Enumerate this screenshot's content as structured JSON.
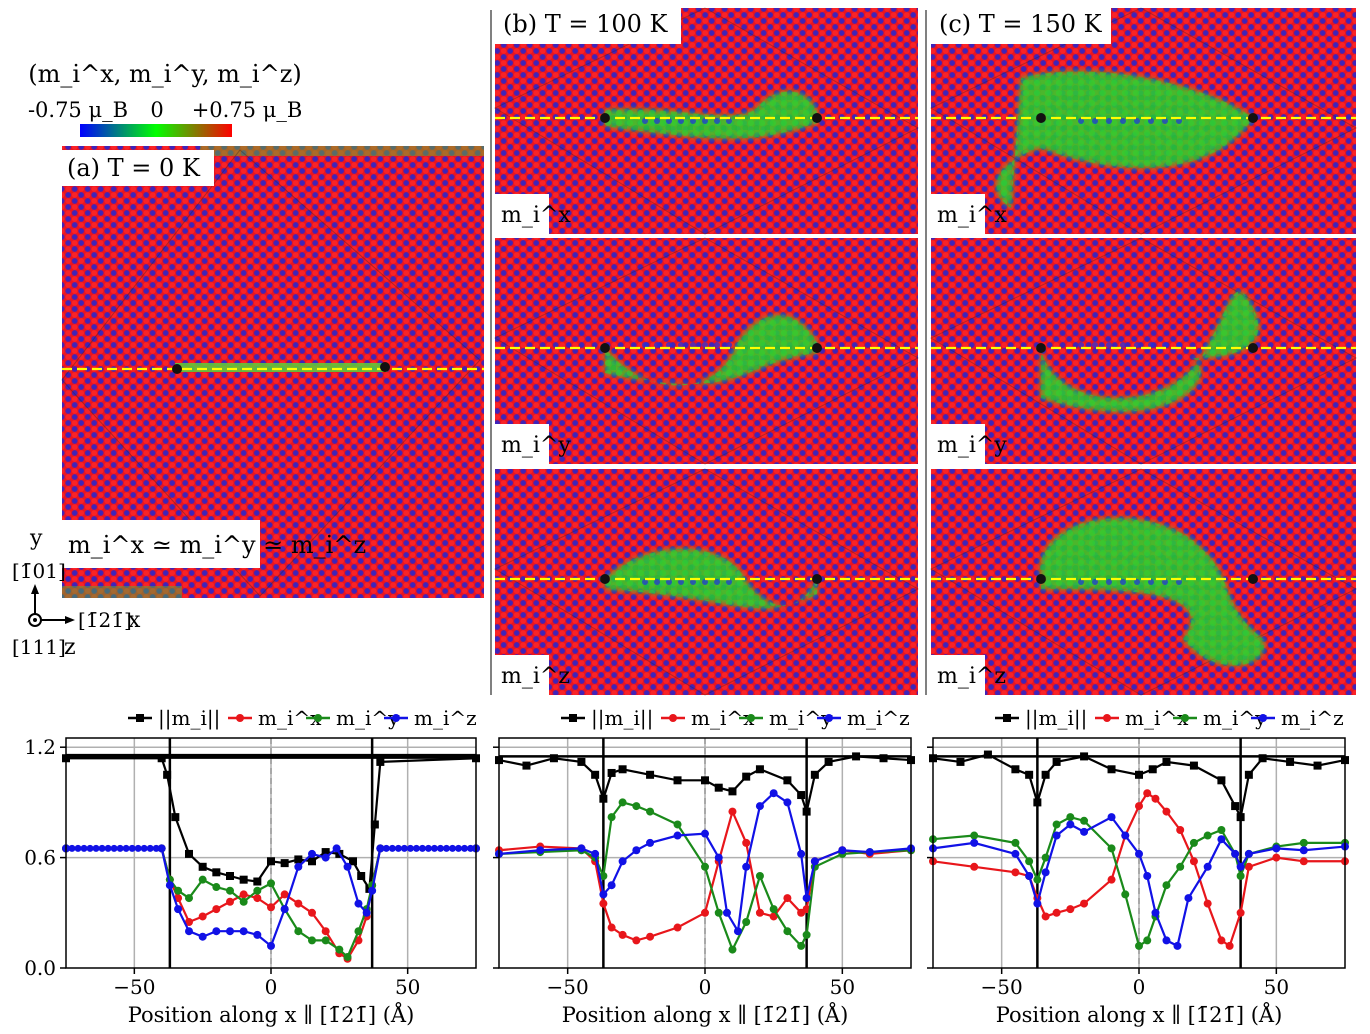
{
  "colorbar": {
    "title": "(m_i^x, m_i^y, m_i^z)",
    "min_label": "-0.75 μ_B",
    "mid_label": "0",
    "max_label": "+0.75 μ_B",
    "colors": [
      "#0000ff",
      "#00ff00",
      "#ff0000"
    ]
  },
  "maps": {
    "a_title": "(a) T = 0 K",
    "a_note": "m_i^x ≃ m_i^y ≃ m_i^z",
    "b_title": "(b) T = 100 K",
    "c_title": "(c) T = 150 K",
    "row_labels": [
      "m_i^x",
      "m_i^y",
      "m_i^z"
    ]
  },
  "axes_legend": {
    "y_name": "y",
    "y_dir": "[1̄01]",
    "x_dir": "[1̄21̄]",
    "x_name": "x",
    "z_dir": "[111]",
    "z_name": "z"
  },
  "colors": {
    "norm": "#000000",
    "mx": "#e8161b",
    "my": "#1a8a1a",
    "mz": "#1111e6",
    "dashed_line": "#ffff00",
    "map_red": "#e8141f",
    "map_blue": "#1b24d6",
    "map_green": "#2ad62a"
  },
  "chart_data": [
    {
      "type": "line",
      "panel": "T = 0 K",
      "xlabel": "Position along x ∥ [1̄21̄] (Å)",
      "xlim": [
        -75,
        75
      ],
      "ylim": [
        0,
        1.25
      ],
      "x_ticks": [
        "−50",
        "0",
        "50"
      ],
      "y_ticks": [
        "0.0",
        "0.6",
        "1.2"
      ],
      "grid": true,
      "legend_position": "top-center",
      "vertical_lines": [
        -37,
        37
      ],
      "reference_lines_y": [
        1.15,
        0.65
      ],
      "series": [
        {
          "name": "||m_i||",
          "x": [
            -75,
            -40,
            -38,
            -35,
            -30,
            -25,
            -20,
            -15,
            -10,
            -5,
            0,
            5,
            10,
            15,
            20,
            25,
            30,
            33,
            36,
            38,
            40,
            75
          ],
          "values": [
            1.14,
            1.14,
            1.05,
            0.82,
            0.62,
            0.55,
            0.52,
            0.5,
            0.48,
            0.47,
            0.58,
            0.57,
            0.59,
            0.58,
            0.63,
            0.62,
            0.58,
            0.5,
            0.43,
            0.78,
            1.12,
            1.14
          ]
        },
        {
          "name": "m_i^x",
          "x": [
            -75,
            -40,
            -37,
            -34,
            -30,
            -25,
            -20,
            -15,
            -10,
            -5,
            0,
            5,
            10,
            15,
            20,
            25,
            28,
            32,
            35,
            37,
            40,
            75
          ],
          "values": [
            0.65,
            0.65,
            0.48,
            0.38,
            0.25,
            0.28,
            0.32,
            0.36,
            0.4,
            0.38,
            0.33,
            0.4,
            0.35,
            0.3,
            0.2,
            0.08,
            0.05,
            0.15,
            0.28,
            0.45,
            0.65,
            0.65
          ]
        },
        {
          "name": "m_i^y",
          "x": [
            -75,
            -40,
            -37,
            -34,
            -30,
            -25,
            -20,
            -15,
            -10,
            -5,
            0,
            5,
            10,
            15,
            20,
            25,
            28,
            32,
            35,
            37,
            40,
            75
          ],
          "values": [
            0.65,
            0.65,
            0.48,
            0.42,
            0.38,
            0.48,
            0.44,
            0.42,
            0.36,
            0.42,
            0.46,
            0.32,
            0.2,
            0.15,
            0.15,
            0.1,
            0.06,
            0.2,
            0.32,
            0.45,
            0.65,
            0.65
          ]
        },
        {
          "name": "m_i^z",
          "x": [
            -75,
            -40,
            -37,
            -34,
            -30,
            -25,
            -20,
            -15,
            -10,
            -5,
            0,
            5,
            10,
            15,
            20,
            24,
            28,
            32,
            35,
            37,
            40,
            75
          ],
          "values": [
            0.65,
            0.65,
            0.45,
            0.32,
            0.2,
            0.17,
            0.2,
            0.2,
            0.2,
            0.18,
            0.12,
            0.32,
            0.55,
            0.62,
            0.6,
            0.65,
            0.55,
            0.35,
            0.3,
            0.42,
            0.65,
            0.65
          ]
        }
      ]
    },
    {
      "type": "line",
      "panel": "T = 100 K",
      "xlabel": "Position along x ∥ [1̄21̄] (Å)",
      "xlim": [
        -75,
        75
      ],
      "ylim": [
        0,
        1.25
      ],
      "x_ticks": [
        "−50",
        "0",
        "50"
      ],
      "grid": true,
      "legend_position": "top-center",
      "vertical_lines": [
        -37,
        37
      ],
      "reference_lines_y": [
        1.15,
        0.65
      ],
      "series": [
        {
          "name": "||m_i||",
          "x": [
            -75,
            -65,
            -55,
            -45,
            -40,
            -37,
            -34,
            -30,
            -20,
            -10,
            0,
            5,
            10,
            15,
            20,
            30,
            35,
            37,
            40,
            45,
            55,
            65,
            75
          ],
          "values": [
            1.13,
            1.1,
            1.14,
            1.12,
            1.05,
            0.92,
            1.06,
            1.08,
            1.05,
            1.02,
            1.02,
            0.98,
            0.96,
            1.04,
            1.08,
            1.02,
            0.94,
            0.85,
            1.05,
            1.12,
            1.15,
            1.14,
            1.13
          ]
        },
        {
          "name": "m_i^x",
          "x": [
            -75,
            -60,
            -45,
            -40,
            -37,
            -34,
            -30,
            -25,
            -20,
            -10,
            0,
            5,
            10,
            15,
            20,
            25,
            30,
            35,
            37,
            40,
            50,
            60,
            75
          ],
          "values": [
            0.64,
            0.66,
            0.65,
            0.58,
            0.35,
            0.22,
            0.18,
            0.15,
            0.17,
            0.22,
            0.3,
            0.58,
            0.85,
            0.68,
            0.3,
            0.28,
            0.38,
            0.3,
            0.32,
            0.58,
            0.64,
            0.62,
            0.64
          ]
        },
        {
          "name": "m_i^y",
          "x": [
            -75,
            -60,
            -45,
            -40,
            -37,
            -34,
            -30,
            -25,
            -20,
            -10,
            0,
            5,
            10,
            15,
            20,
            25,
            30,
            35,
            37,
            40,
            50,
            60,
            75
          ],
          "values": [
            0.62,
            0.63,
            0.64,
            0.6,
            0.5,
            0.82,
            0.9,
            0.88,
            0.85,
            0.78,
            0.55,
            0.3,
            0.1,
            0.25,
            0.5,
            0.32,
            0.2,
            0.12,
            0.18,
            0.55,
            0.62,
            0.63,
            0.64
          ]
        },
        {
          "name": "m_i^z",
          "x": [
            -75,
            -60,
            -45,
            -40,
            -37,
            -34,
            -30,
            -25,
            -20,
            -10,
            0,
            5,
            8,
            12,
            15,
            20,
            25,
            30,
            35,
            37,
            40,
            50,
            60,
            75
          ],
          "values": [
            0.62,
            0.64,
            0.65,
            0.62,
            0.4,
            0.45,
            0.58,
            0.64,
            0.68,
            0.72,
            0.73,
            0.6,
            0.3,
            0.2,
            0.55,
            0.88,
            0.95,
            0.9,
            0.62,
            0.38,
            0.58,
            0.64,
            0.63,
            0.65
          ]
        }
      ]
    },
    {
      "type": "line",
      "panel": "T = 150 K",
      "xlabel": "Position along x ∥ [1̄21̄] (Å)",
      "xlim": [
        -75,
        75
      ],
      "ylim": [
        0,
        1.25
      ],
      "x_ticks": [
        "−50",
        "0",
        "50"
      ],
      "grid": true,
      "legend_position": "top-center",
      "vertical_lines": [
        -37,
        37
      ],
      "reference_lines_y": [
        1.15,
        0.65
      ],
      "series": [
        {
          "name": "||m_i||",
          "x": [
            -75,
            -65,
            -55,
            -45,
            -40,
            -37,
            -34,
            -30,
            -20,
            -10,
            0,
            5,
            10,
            20,
            30,
            35,
            37,
            40,
            45,
            55,
            65,
            75
          ],
          "values": [
            1.14,
            1.12,
            1.16,
            1.08,
            1.05,
            0.9,
            1.05,
            1.12,
            1.15,
            1.08,
            1.05,
            1.08,
            1.12,
            1.1,
            1.02,
            0.88,
            0.82,
            1.05,
            1.14,
            1.12,
            1.1,
            1.13
          ]
        },
        {
          "name": "m_i^x",
          "x": [
            -75,
            -60,
            -45,
            -40,
            -37,
            -34,
            -30,
            -25,
            -20,
            -10,
            -5,
            0,
            3,
            6,
            10,
            15,
            20,
            25,
            30,
            33,
            37,
            40,
            50,
            60,
            75
          ],
          "values": [
            0.58,
            0.55,
            0.52,
            0.5,
            0.38,
            0.28,
            0.3,
            0.32,
            0.35,
            0.48,
            0.72,
            0.88,
            0.95,
            0.92,
            0.85,
            0.75,
            0.58,
            0.35,
            0.15,
            0.12,
            0.3,
            0.55,
            0.6,
            0.58,
            0.58
          ]
        },
        {
          "name": "m_i^y",
          "x": [
            -75,
            -60,
            -45,
            -40,
            -37,
            -34,
            -30,
            -25,
            -20,
            -10,
            -5,
            0,
            3,
            6,
            10,
            15,
            20,
            25,
            30,
            35,
            37,
            40,
            50,
            60,
            75
          ],
          "values": [
            0.7,
            0.72,
            0.68,
            0.58,
            0.48,
            0.6,
            0.78,
            0.82,
            0.8,
            0.65,
            0.4,
            0.12,
            0.15,
            0.28,
            0.45,
            0.55,
            0.68,
            0.72,
            0.75,
            0.62,
            0.5,
            0.62,
            0.66,
            0.68,
            0.68
          ]
        },
        {
          "name": "m_i^z",
          "x": [
            -75,
            -60,
            -45,
            -40,
            -37,
            -34,
            -30,
            -25,
            -20,
            -10,
            -5,
            0,
            3,
            6,
            10,
            14,
            18,
            25,
            30,
            35,
            37,
            40,
            50,
            60,
            75
          ],
          "values": [
            0.65,
            0.68,
            0.62,
            0.5,
            0.35,
            0.52,
            0.72,
            0.78,
            0.74,
            0.82,
            0.72,
            0.62,
            0.5,
            0.3,
            0.15,
            0.12,
            0.38,
            0.55,
            0.7,
            0.62,
            0.55,
            0.62,
            0.65,
            0.64,
            0.66
          ]
        }
      ]
    }
  ]
}
